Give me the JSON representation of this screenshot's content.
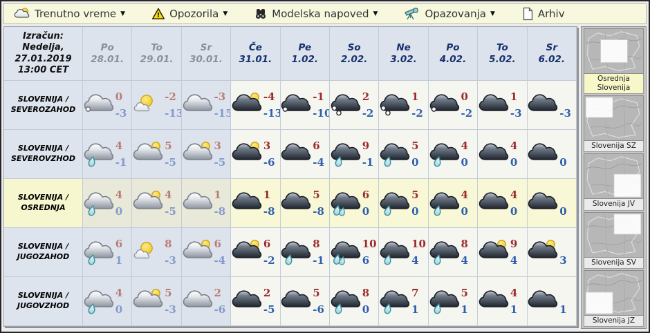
{
  "menu": {
    "items": [
      {
        "label": "Trenutno vreme",
        "icon": "cloud-sun-icon",
        "caret": true
      },
      {
        "label": "Opozorila",
        "icon": "warning-icon",
        "caret": true
      },
      {
        "label": "Modelska napoved",
        "icon": "binoculars-icon",
        "caret": true
      },
      {
        "label": "Opazovanja",
        "icon": "telescope-icon",
        "caret": true
      },
      {
        "label": "Arhiv",
        "icon": "document-icon",
        "caret": false
      }
    ]
  },
  "forecast_table": {
    "corner_text": "Izračun:\nNedelja,\n27.01.2019\n13:00 CET",
    "columns": [
      {
        "day": "Po",
        "date": "28.01.",
        "muted": true
      },
      {
        "day": "To",
        "date": "29.01.",
        "muted": true
      },
      {
        "day": "Sr",
        "date": "30.01.",
        "muted": true
      },
      {
        "day": "Če",
        "date": "31.01.",
        "muted": false
      },
      {
        "day": "Pe",
        "date": "1.02.",
        "muted": false
      },
      {
        "day": "So",
        "date": "2.02.",
        "muted": false
      },
      {
        "day": "Ne",
        "date": "3.02.",
        "muted": false
      },
      {
        "day": "Po",
        "date": "4.02.",
        "muted": false
      },
      {
        "day": "To",
        "date": "5.02.",
        "muted": false
      },
      {
        "day": "Sr",
        "date": "6.02.",
        "muted": false
      }
    ],
    "rows": [
      {
        "label": "SLOVENIJA /\nSEVEROZAHOD",
        "highlighted": false,
        "cells": [
          {
            "icon": "cloud-snow",
            "tmax": "0",
            "tmin": "-3"
          },
          {
            "icon": "sun-cloud",
            "tmax": "-2",
            "tmin": "-13"
          },
          {
            "icon": "cloud",
            "tmax": "-3",
            "tmin": "-15"
          },
          {
            "icon": "cloud-sun",
            "tmax": "-4",
            "tmin": "-13"
          },
          {
            "icon": "cloud-snow",
            "tmax": "-1",
            "tmin": "-10"
          },
          {
            "icon": "cloud-snow2",
            "tmax": "2",
            "tmin": "-2"
          },
          {
            "icon": "cloud-snow2",
            "tmax": "1",
            "tmin": "-2"
          },
          {
            "icon": "cloud-snow",
            "tmax": "0",
            "tmin": "-2"
          },
          {
            "icon": "cloud",
            "tmax": "1",
            "tmin": "-3"
          },
          {
            "icon": "cloud",
            "tmax": "",
            "tmin": "-3"
          }
        ]
      },
      {
        "label": "SLOVENIJA /\nSEVEROVZHOD",
        "highlighted": false,
        "cells": [
          {
            "icon": "cloud-rain",
            "tmax": "4",
            "tmin": "-1"
          },
          {
            "icon": "cloud-sun",
            "tmax": "5",
            "tmin": "-5"
          },
          {
            "icon": "cloud-sun",
            "tmax": "3",
            "tmin": "-5"
          },
          {
            "icon": "cloud-sun",
            "tmax": "3",
            "tmin": "-6"
          },
          {
            "icon": "cloud",
            "tmax": "6",
            "tmin": "-4"
          },
          {
            "icon": "cloud-rain",
            "tmax": "9",
            "tmin": "-1"
          },
          {
            "icon": "cloud-rain",
            "tmax": "5",
            "tmin": "0"
          },
          {
            "icon": "cloud-rain",
            "tmax": "4",
            "tmin": "0"
          },
          {
            "icon": "cloud",
            "tmax": "4",
            "tmin": "0"
          },
          {
            "icon": "cloud",
            "tmax": "",
            "tmin": "0"
          }
        ]
      },
      {
        "label": "SLOVENIJA /\nOSREDNJA",
        "highlighted": true,
        "cells": [
          {
            "icon": "cloud-rain",
            "tmax": "4",
            "tmin": "0"
          },
          {
            "icon": "cloud-sun",
            "tmax": "4",
            "tmin": "-5"
          },
          {
            "icon": "cloud",
            "tmax": "1",
            "tmin": "-8"
          },
          {
            "icon": "cloud",
            "tmax": "1",
            "tmin": "-8"
          },
          {
            "icon": "cloud",
            "tmax": "5",
            "tmin": "-8"
          },
          {
            "icon": "cloud-rain2",
            "tmax": "6",
            "tmin": "0"
          },
          {
            "icon": "cloud-rain",
            "tmax": "5",
            "tmin": "0"
          },
          {
            "icon": "cloud-rain",
            "tmax": "4",
            "tmin": "0"
          },
          {
            "icon": "cloud",
            "tmax": "4",
            "tmin": "0"
          },
          {
            "icon": "cloud",
            "tmax": "",
            "tmin": "0"
          }
        ]
      },
      {
        "label": "SLOVENIJA /\nJUGOZAHOD",
        "highlighted": false,
        "cells": [
          {
            "icon": "cloud-rain",
            "tmax": "6",
            "tmin": "1"
          },
          {
            "icon": "sun-cloud",
            "tmax": "8",
            "tmin": "-3"
          },
          {
            "icon": "cloud-sun",
            "tmax": "6",
            "tmin": "-4"
          },
          {
            "icon": "cloud-sun",
            "tmax": "6",
            "tmin": "-2"
          },
          {
            "icon": "cloud-rain",
            "tmax": "8",
            "tmin": "-1"
          },
          {
            "icon": "cloud-rain2",
            "tmax": "10",
            "tmin": "6"
          },
          {
            "icon": "cloud-rain",
            "tmax": "10",
            "tmin": "4"
          },
          {
            "icon": "cloud-rain",
            "tmax": "8",
            "tmin": "4"
          },
          {
            "icon": "cloud-sun",
            "tmax": "9",
            "tmin": "4"
          },
          {
            "icon": "cloud-sun",
            "tmax": "",
            "tmin": "3"
          }
        ]
      },
      {
        "label": "SLOVENIJA /\nJUGOVZHOD",
        "highlighted": false,
        "cells": [
          {
            "icon": "cloud-rain",
            "tmax": "4",
            "tmin": "0"
          },
          {
            "icon": "cloud-sun",
            "tmax": "5",
            "tmin": "-3"
          },
          {
            "icon": "cloud",
            "tmax": "2",
            "tmin": "-6"
          },
          {
            "icon": "cloud",
            "tmax": "2",
            "tmin": "-5"
          },
          {
            "icon": "cloud",
            "tmax": "5",
            "tmin": "-6"
          },
          {
            "icon": "cloud-rain",
            "tmax": "8",
            "tmin": "0"
          },
          {
            "icon": "cloud-rain",
            "tmax": "7",
            "tmin": "1"
          },
          {
            "icon": "cloud-rain",
            "tmax": "5",
            "tmin": "1"
          },
          {
            "icon": "cloud",
            "tmax": "4",
            "tmin": "1"
          },
          {
            "icon": "cloud",
            "tmax": "",
            "tmin": "1"
          }
        ]
      }
    ]
  },
  "sidebar": {
    "maps": [
      {
        "label": "Osrednja\nSlovenija",
        "region": "center",
        "active": true
      },
      {
        "label": "Slovenija SZ",
        "region": "nw",
        "active": false
      },
      {
        "label": "Slovenija JV",
        "region": "se",
        "active": false
      },
      {
        "label": "Slovenija SV",
        "region": "ne",
        "active": false
      },
      {
        "label": "Slovenija JZ",
        "region": "sw",
        "active": false
      }
    ]
  },
  "colors": {
    "menu_bg": "#f8f8df",
    "header_bg": "#dce3ec",
    "highlight_row": "#f8f8d6",
    "active_map_label": "#f7f7c8",
    "temp_max": "#9c2b2b",
    "temp_min": "#2f5fae"
  }
}
